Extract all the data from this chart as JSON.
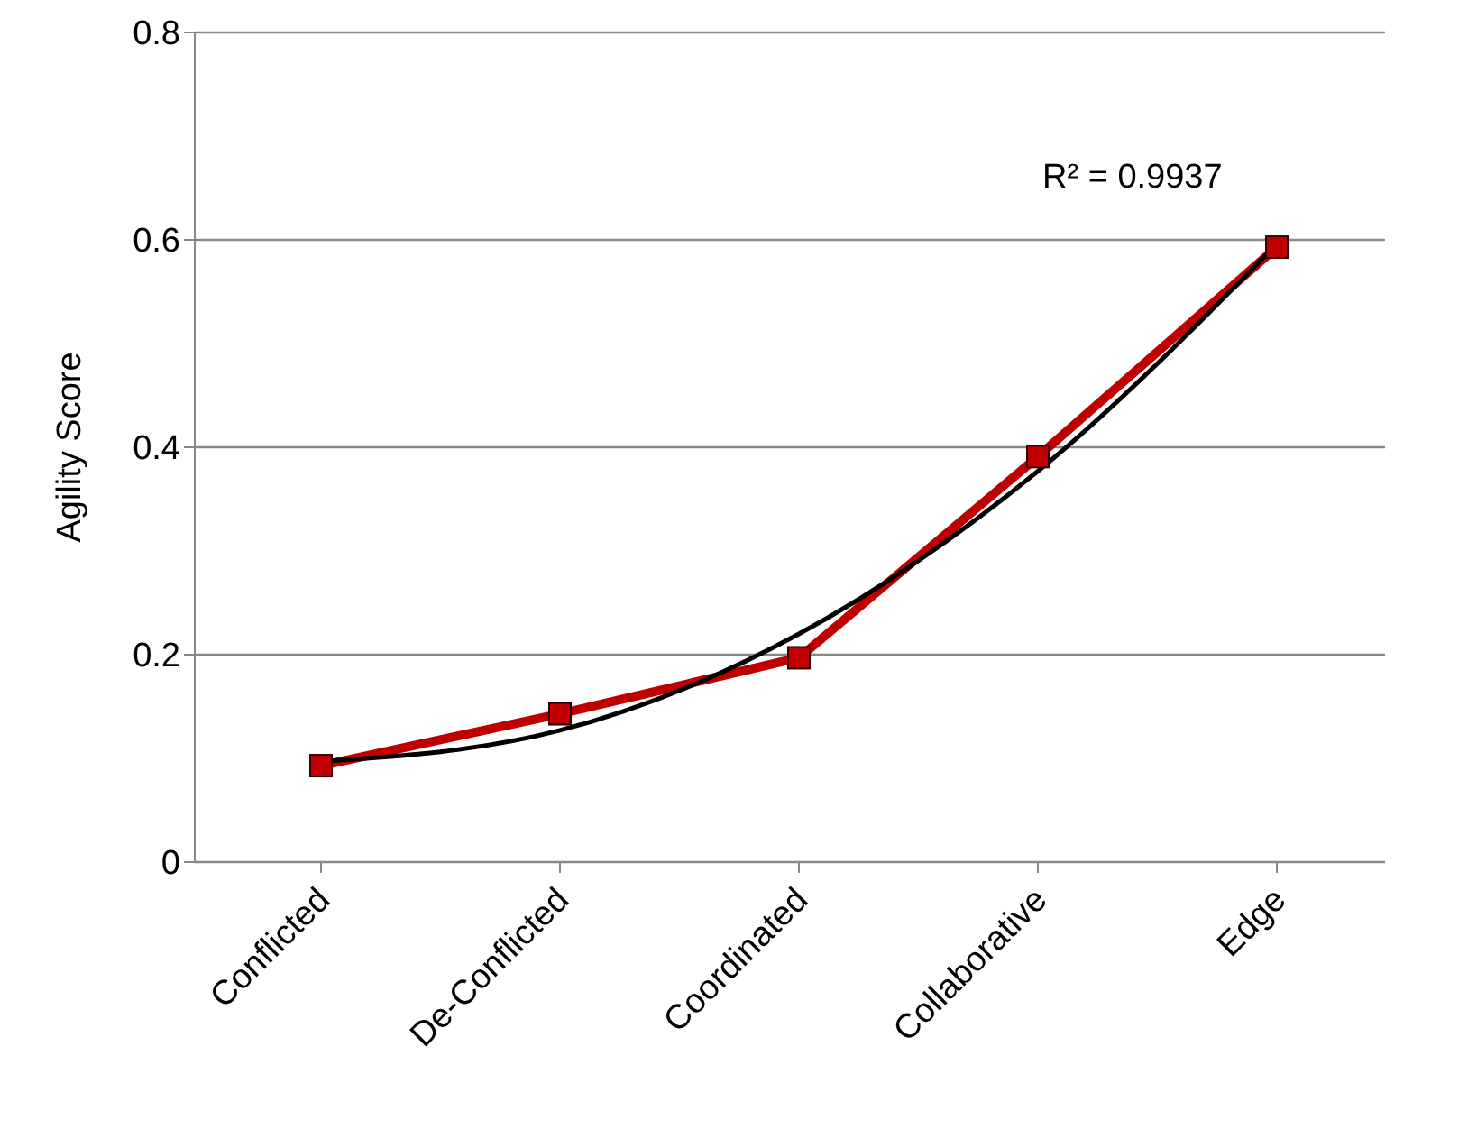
{
  "chart_data": {
    "type": "line",
    "ylabel": "Agility Score",
    "categories": [
      "Conflicted",
      "De-Conflicted",
      "Coordinated",
      "Collaborative",
      "Edge"
    ],
    "series": [
      {
        "color": "#c00000",
        "values": [
          0.093,
          0.143,
          0.197,
          0.391,
          0.593
        ],
        "marker": "square"
      },
      {
        "color": "#000000",
        "values": [
          0.097,
          0.127,
          0.22,
          0.377,
          0.596
        ],
        "marker": "none"
      }
    ],
    "ylim": [
      0,
      0.8
    ],
    "yticks": [
      0,
      0.2,
      0.4,
      0.6,
      0.8
    ],
    "grid": "y",
    "legend": false,
    "line_style": "solid",
    "annotations": [
      "R² = 0.9937"
    ]
  }
}
